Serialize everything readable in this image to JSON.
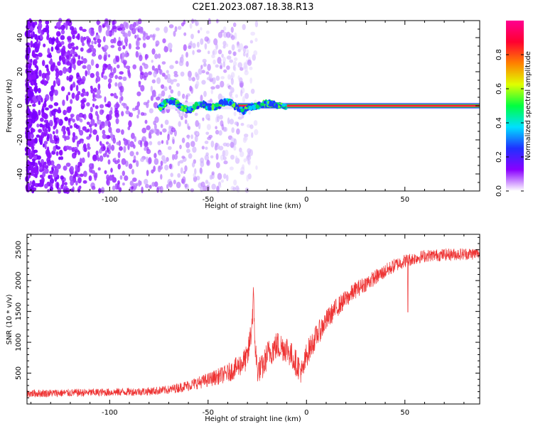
{
  "title": "C2E1.2023.087.18.38.R13",
  "chart_data": [
    {
      "type": "heatmap",
      "xlabel": "Height of straight line (km)",
      "ylabel": "Frequency (Hz)",
      "xlim": [
        -142,
        88
      ],
      "ylim": [
        -50,
        50
      ],
      "xticks": [
        -100,
        -50,
        0,
        50
      ],
      "yticks": [
        -40,
        -20,
        0,
        20,
        40
      ],
      "colorbar": {
        "label": "Normalized spectral amplitude",
        "range": [
          0,
          1
        ],
        "ticks": [
          "0.0",
          "0.2",
          "0.4",
          "0.6",
          "0.8"
        ],
        "colormap": [
          "#ffffff",
          "#8a00ff",
          "#2030ff",
          "#00e0ff",
          "#00ff40",
          "#e0ff00",
          "#ff8000",
          "#ff0030",
          "#ff0090"
        ]
      },
      "noise_region_km": [
        -142,
        -25
      ],
      "signal_line": {
        "frequency_hz": 0,
        "start_km": -75,
        "strong_from_km": -35,
        "end_km": 88,
        "wobble_region_km": [
          -75,
          -10
        ],
        "peak_color": "#ff1040",
        "edge_color": "#00a070"
      }
    },
    {
      "type": "line",
      "xlabel": "Height of straight line (km)",
      "ylabel": "SNR (10 * v/v)",
      "xlim": [
        -142,
        88
      ],
      "ylim": [
        0,
        2750
      ],
      "xticks": [
        -100,
        -50,
        0,
        50
      ],
      "yticks": [
        500,
        1000,
        1500,
        2000,
        2500
      ],
      "color": "#ee3333",
      "x": [
        -142,
        -120,
        -100,
        -80,
        -70,
        -60,
        -50,
        -40,
        -35,
        -30,
        -28,
        -27,
        -26,
        -25,
        -22,
        -20,
        -15,
        -10,
        -5,
        -2,
        0,
        5,
        10,
        15,
        20,
        25,
        30,
        35,
        40,
        45,
        50,
        55,
        60,
        70,
        80,
        88
      ],
      "y": [
        170,
        180,
        190,
        205,
        230,
        300,
        390,
        500,
        600,
        750,
        1200,
        1700,
        900,
        550,
        600,
        800,
        950,
        900,
        650,
        500,
        800,
        1100,
        1350,
        1550,
        1700,
        1850,
        1950,
        2050,
        2150,
        2250,
        2320,
        2360,
        2400,
        2420,
        2430,
        2440
      ],
      "noise_amplitude": [
        130,
        130,
        130,
        135,
        140,
        180,
        230,
        300,
        360,
        420,
        500,
        500,
        480,
        420,
        430,
        460,
        480,
        460,
        430,
        420,
        420,
        380,
        350,
        320,
        300,
        280,
        260,
        250,
        240,
        230,
        220,
        210,
        200,
        200,
        200,
        200
      ],
      "dips": [
        {
          "x": 51.5,
          "y": 1490
        }
      ]
    }
  ]
}
